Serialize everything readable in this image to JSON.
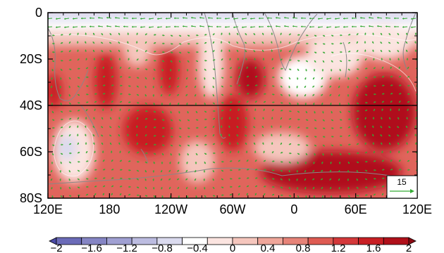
{
  "map": {
    "projection": "cylindrical-equidistant",
    "lon_range": [
      120,
      480
    ],
    "lat_range": [
      -80,
      0
    ],
    "y_ticks": [
      {
        "lat": 0,
        "label": "0"
      },
      {
        "lat": -20,
        "label": "20S"
      },
      {
        "lat": -40,
        "label": "40S"
      },
      {
        "lat": -60,
        "label": "60S"
      },
      {
        "lat": -80,
        "label": "80S"
      }
    ],
    "x_ticks": [
      {
        "lon": 120,
        "label": "120E"
      },
      {
        "lon": 180,
        "label": "180"
      },
      {
        "lon": 240,
        "label": "120W"
      },
      {
        "lon": 300,
        "label": "60W"
      },
      {
        "lon": 360,
        "label": "0"
      },
      {
        "lon": 420,
        "label": "60E"
      },
      {
        "lon": 480,
        "label": "120E"
      }
    ],
    "reference_line_lat": -40,
    "reference_vector": {
      "label": "15",
      "color": "#33aa33"
    },
    "vector_color": "#33aa33",
    "coastline_color": "#888888"
  },
  "colorbar": {
    "labels": [
      "−2",
      "−1.6",
      "−1.2",
      "−0.8",
      "−0.4",
      "0",
      "0.4",
      "0.8",
      "1.2",
      "1.6",
      "2"
    ],
    "colors": [
      "#4a4aa6",
      "#6b6bb8",
      "#8585c4",
      "#a0a0d2",
      "#bcbce0",
      "#dadaee",
      "#ffffff",
      "#fbe4e0",
      "#f5c6bd",
      "#efa69a",
      "#e68378",
      "#de5b52",
      "#d4383a",
      "#c81f24",
      "#b0101a",
      "#8c0a12"
    ]
  }
}
